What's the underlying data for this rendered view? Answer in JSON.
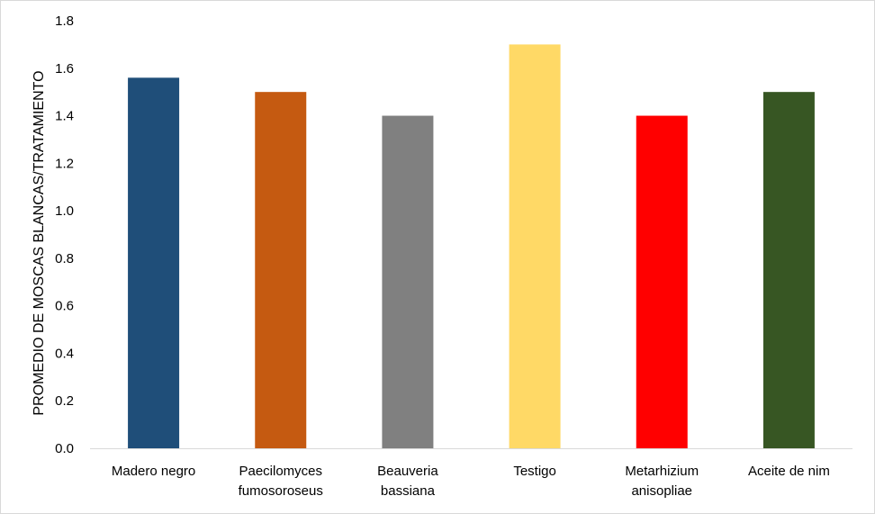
{
  "chart_data": {
    "type": "bar",
    "title": "",
    "xlabel": "",
    "ylabel": "PROMEDIO DE MOSCAS BLANCAS/TRATAMIENTO",
    "ylim": [
      0,
      1.8
    ],
    "yticks": [
      "0.0",
      "0.2",
      "0.4",
      "0.6",
      "0.8",
      "1.0",
      "1.2",
      "1.4",
      "1.6",
      "1.8"
    ],
    "grid": false,
    "legend": "none",
    "categories": [
      [
        "Madero negro"
      ],
      [
        "Paecilomyces",
        "fumosoroseus"
      ],
      [
        "Beauveria",
        "bassiana"
      ],
      [
        "Testigo"
      ],
      [
        "Metarhizium",
        "anisopliae"
      ],
      [
        "Aceite de nim"
      ]
    ],
    "values": [
      1.56,
      1.5,
      1.4,
      1.7,
      1.4,
      1.5
    ],
    "colors": [
      "#1f4e79",
      "#c55a11",
      "#808080",
      "#ffd966",
      "#ff0000",
      "#375623"
    ],
    "axis_color": "#d9d9d9"
  }
}
